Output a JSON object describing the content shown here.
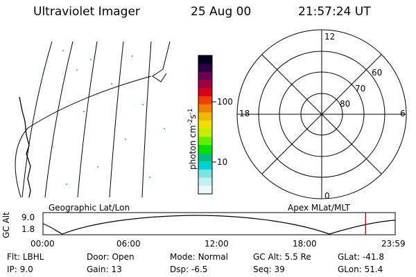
{
  "header": {
    "title": "Ultraviolet Imager",
    "date": "25 Aug 00",
    "time": "21:57:24 UT"
  },
  "colorbar": {
    "unit_label": "photon cm",
    "exp1": "-2",
    "mid_label": "s",
    "exp2": "-1",
    "tick_100": "100",
    "tick_10": "10",
    "colors": [
      "#000020",
      "#2a0040",
      "#6a0050",
      "#a00040",
      "#d80018",
      "#f04000",
      "#f08000",
      "#f0b800",
      "#f0e000",
      "#c0f000",
      "#60f000",
      "#00e000",
      "#00c080",
      "#00d0d0",
      "#80e0e0",
      "#c0f0f0",
      "#e8f8f8"
    ]
  },
  "left_panel": {
    "label": "Geographic Lat/Lon"
  },
  "polar_plot": {
    "label": "Apex MLat/MLT",
    "mlt_labels": {
      "top": "12",
      "bottom": "0",
      "left": "18",
      "right": "6"
    },
    "lat_labels": [
      "60",
      "70",
      "80"
    ]
  },
  "altitude_strip": {
    "axis_label": "GC Alt",
    "y_top": "9.0",
    "y_bottom": "1.8",
    "time_ticks": [
      "00:00",
      "06:00",
      "12:00",
      "18:00",
      "23:59"
    ],
    "current_marker_fraction": 0.916,
    "marker_color": "#e00000"
  },
  "info": {
    "filter": {
      "label": "Flt:",
      "value": "LBHL"
    },
    "ip": {
      "label": "IP:",
      "value": "9.0"
    },
    "door": {
      "label": "Door:",
      "value": "Open"
    },
    "gain": {
      "label": "Gain:",
      "value": "13"
    },
    "mode": {
      "label": "Mode:",
      "value": "Normal"
    },
    "dsp": {
      "label": "Dsp:",
      "value": "-6.5"
    },
    "gc_alt": {
      "label": "GC Alt:",
      "value": "5.5 Re"
    },
    "seq": {
      "label": "Seq:",
      "value": "39"
    },
    "glat": {
      "label": "GLat:",
      "value": "-41.8"
    },
    "glon": {
      "label": "GLon:",
      "value": "51.4"
    }
  }
}
